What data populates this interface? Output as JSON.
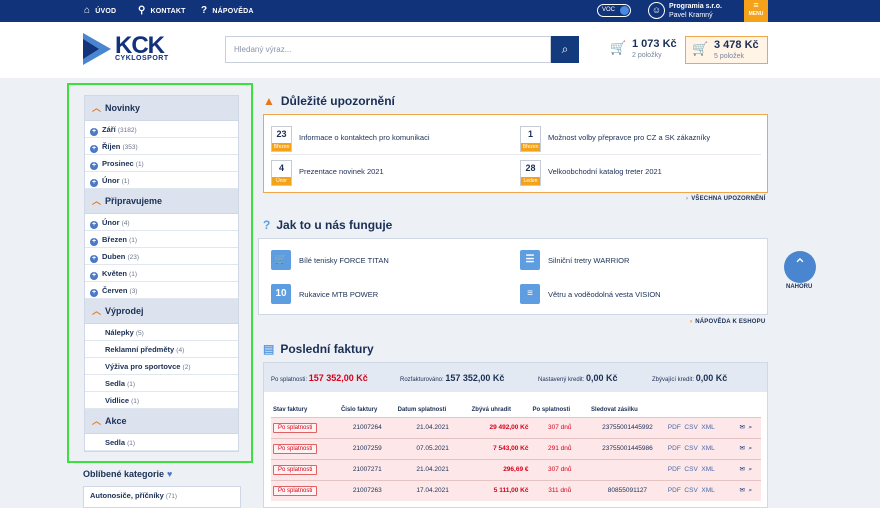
{
  "topbar": {
    "home_label": "ÚVOD",
    "contact_label": "KONTAKT",
    "help_label": "NÁPOVĚDA",
    "voc_label": "VOC",
    "company": "Programia s.r.o.",
    "user_name": "Pavel Kramný",
    "menu_label": "MENU"
  },
  "header": {
    "logo_text": "KCK",
    "logo_sub": "CYKLOSPORT",
    "search_placeholder": "Hledaný výraz...",
    "cart1": {
      "amount": "1 073 Kč",
      "count": "2 položky"
    },
    "cart2": {
      "amount": "3 478 Kč",
      "count": "5 položek"
    }
  },
  "sidebar": {
    "sections": [
      {
        "title": "Novinky",
        "items": [
          {
            "label": "Září",
            "count": "(3182)"
          },
          {
            "label": "Říjen",
            "count": "(353)"
          },
          {
            "label": "Prosinec",
            "count": "(1)"
          },
          {
            "label": "Únor",
            "count": "(1)"
          }
        ]
      },
      {
        "title": "Připravujeme",
        "items": [
          {
            "label": "Únor",
            "count": "(4)"
          },
          {
            "label": "Březen",
            "count": "(1)"
          },
          {
            "label": "Duben",
            "count": "(23)"
          },
          {
            "label": "Květen",
            "count": "(1)"
          },
          {
            "label": "Červen",
            "count": "(3)"
          }
        ]
      },
      {
        "title": "Výprodej",
        "items": [
          {
            "label": "Nálepky",
            "count": "(5)"
          },
          {
            "label": "Reklamní předměty",
            "count": "(4)"
          },
          {
            "label": "Výživa pro sportovce",
            "count": "(2)"
          },
          {
            "label": "Sedla",
            "count": "(1)"
          },
          {
            "label": "Vidlice",
            "count": "(1)"
          }
        ]
      },
      {
        "title": "Akce",
        "items": [
          {
            "label": "Sedla",
            "count": "(1)"
          }
        ]
      }
    ],
    "favorites_title": "Oblíbené kategorie",
    "favorites_first": {
      "label": "Autonosiče, příčníky",
      "count": "(71)"
    }
  },
  "notices": {
    "title": "Důležité upozornění",
    "items": [
      {
        "day": "23",
        "month": "Březen",
        "text": "Informace o kontaktech pro komunikaci"
      },
      {
        "day": "1",
        "month": "Březen",
        "text": "Možnost volby přepravce pro CZ a SK zákazníky"
      },
      {
        "day": "4",
        "month": "Únor",
        "text": "Prezentace novinek 2021"
      },
      {
        "day": "28",
        "month": "Leden",
        "text": "Velkoobchodní katalog treter 2021"
      }
    ],
    "all_link": "VŠECHNA UPOZORNĚNÍ"
  },
  "howto": {
    "title": "Jak to u nás funguje",
    "items": [
      {
        "icon": "cart-plus-icon",
        "glyph": "🛒",
        "text": "Bílé tenisky FORCE TITAN"
      },
      {
        "icon": "sliders-icon",
        "glyph": "☰",
        "text": "Silniční tretry WARRIOR"
      },
      {
        "icon": "number-10-icon",
        "glyph": "10",
        "text": "Rukavice MTB POWER"
      },
      {
        "icon": "list-add-icon",
        "glyph": "≡",
        "text": "Větru a voděodolná vesta VISION"
      }
    ],
    "help_link": "NÁPOVĚDA K ESHOPU"
  },
  "totop_label": "NAHORU",
  "invoices": {
    "title": "Poslední faktury",
    "summary": {
      "due_label": "Po splatnosti:",
      "due_value": "157 352,00 Kč",
      "invoiced_label": "Rozfakturováno:",
      "invoiced_value": "157 352,00 Kč",
      "credit_label": "Nastavený kredit:",
      "credit_value": "0,00 Kč",
      "remaining_label": "Zbývající kredit:",
      "remaining_value": "0,00 Kč"
    },
    "headers": [
      "Stav faktury",
      "Číslo faktury",
      "Datum splatnosti",
      "Zbývá uhradit",
      "Po splatnosti",
      "Sledovat zásilku"
    ],
    "rows": [
      {
        "status": "Po splatnosti",
        "number": "21007264",
        "due": "21.04.2021",
        "remaining": "29 492,00 Kč",
        "overdue": "307 dnů",
        "tracking": "23755001445992"
      },
      {
        "status": "Po splatnosti",
        "number": "21007259",
        "due": "07.05.2021",
        "remaining": "7 543,00 Kč",
        "overdue": "291 dnů",
        "tracking": "23755001445986"
      },
      {
        "status": "Po splatnosti",
        "number": "21007271",
        "due": "21.04.2021",
        "remaining": "296,69 €",
        "overdue": "307 dnů",
        "tracking": ""
      },
      {
        "status": "Po splatnosti",
        "number": "21007263",
        "due": "17.04.2021",
        "remaining": "5 111,00 Kč",
        "overdue": "311 dnů",
        "tracking": "80855091127"
      }
    ],
    "doc_labels": [
      "PDF",
      "CSV",
      "XML"
    ]
  }
}
